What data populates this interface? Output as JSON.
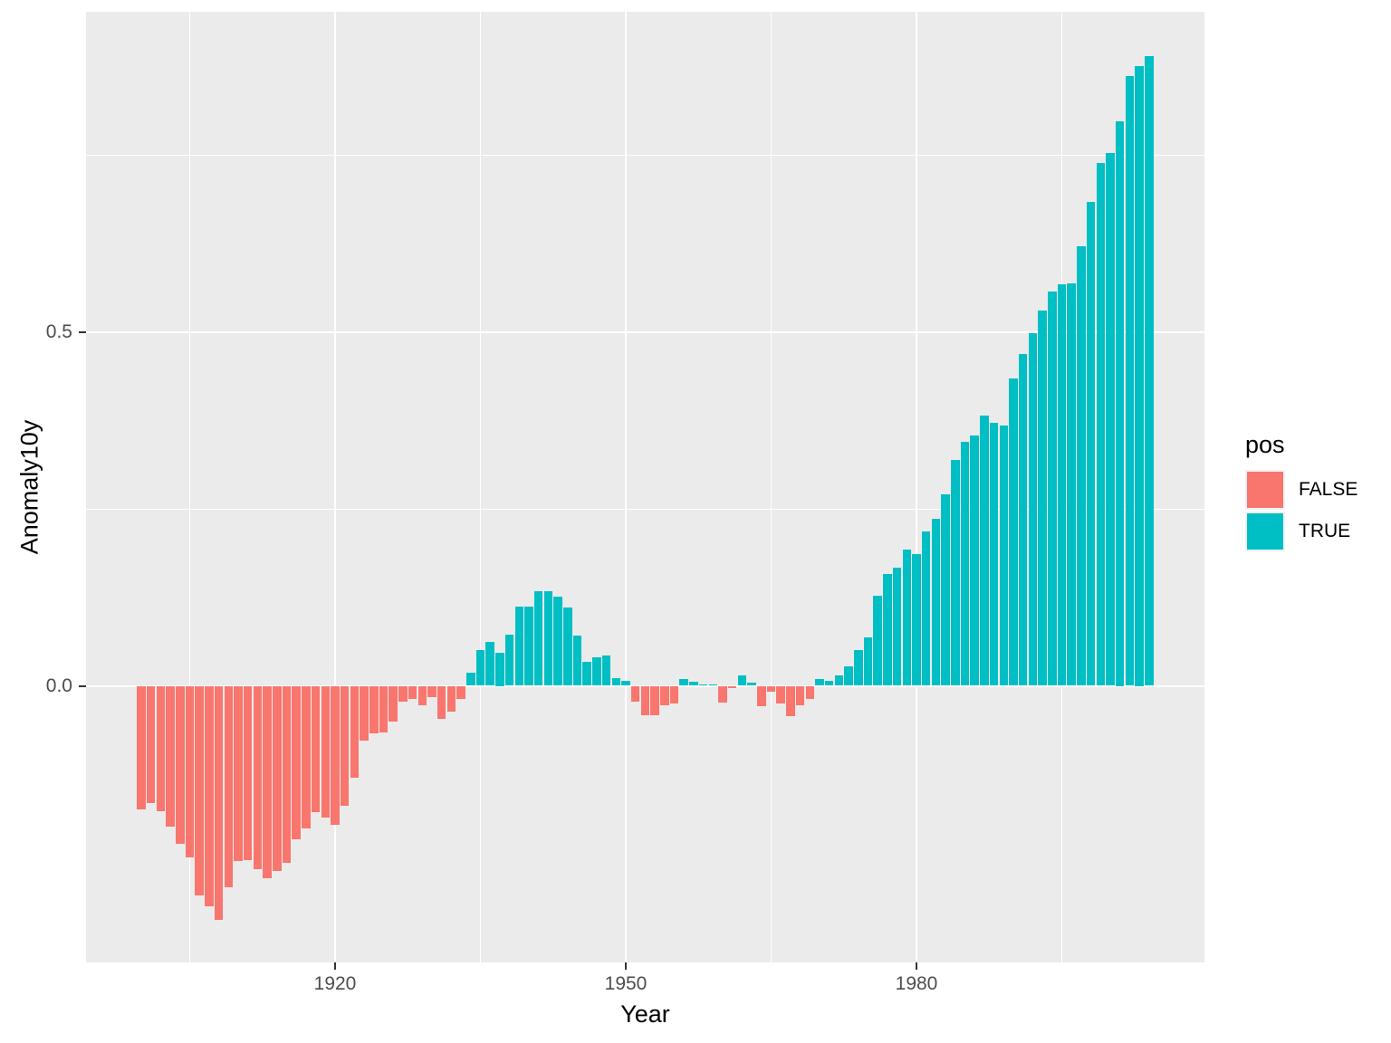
{
  "figure": {
    "x_axis": {
      "title": "Year",
      "tick_labels": [
        "1920",
        "1950",
        "1980"
      ]
    },
    "y_axis": {
      "title": "Anomaly10y",
      "tick_labels": [
        "0.0",
        "0.5"
      ]
    },
    "legend": {
      "title": "pos",
      "items": [
        {
          "label": "FALSE",
          "color": "#F8766D"
        },
        {
          "label": "TRUE",
          "color": "#00BFC4"
        }
      ]
    }
  },
  "chart_data": {
    "type": "bar",
    "title": "",
    "xlabel": "Year",
    "ylabel": "Anomaly10y",
    "legend_title": "pos",
    "legend_position": "right",
    "grid": true,
    "color_rule": "pos = (Anomaly10y >= 0); FALSE -> salmon, TRUE -> teal",
    "colors": {
      "FALSE": "#F8766D",
      "TRUE": "#00BFC4"
    },
    "panel_background": "#EBEBEB",
    "xlim": [
      1894.8,
      2009.2
    ],
    "ylim": [
      -0.392,
      0.952
    ],
    "x_major_breaks": [
      1920,
      1950,
      1980
    ],
    "x_minor_breaks": [
      1905,
      1935,
      1965,
      1995
    ],
    "y_major_breaks": [
      0.0,
      0.5
    ],
    "y_minor_breaks": [
      0.25,
      0.75
    ],
    "bar_width_fraction": 0.9,
    "years": [
      1900,
      1901,
      1902,
      1903,
      1904,
      1905,
      1906,
      1907,
      1908,
      1909,
      1910,
      1911,
      1912,
      1913,
      1914,
      1915,
      1916,
      1917,
      1918,
      1919,
      1920,
      1921,
      1922,
      1923,
      1924,
      1925,
      1926,
      1927,
      1928,
      1929,
      1930,
      1931,
      1932,
      1933,
      1934,
      1935,
      1936,
      1937,
      1938,
      1939,
      1940,
      1941,
      1942,
      1943,
      1944,
      1945,
      1946,
      1947,
      1948,
      1949,
      1950,
      1951,
      1952,
      1953,
      1954,
      1955,
      1956,
      1957,
      1958,
      1959,
      1960,
      1961,
      1962,
      1963,
      1964,
      1965,
      1966,
      1967,
      1968,
      1969,
      1970,
      1971,
      1972,
      1973,
      1974,
      1975,
      1976,
      1977,
      1978,
      1979,
      1980,
      1981,
      1982,
      1983,
      1984,
      1985,
      1986,
      1987,
      1988,
      1989,
      1990,
      1991,
      1992,
      1993,
      1994,
      1995,
      1996,
      1997,
      1998,
      1999,
      2000,
      2001,
      2002,
      2003,
      2004
    ],
    "values": [
      -0.174,
      -0.166,
      -0.177,
      -0.199,
      -0.223,
      -0.242,
      -0.296,
      -0.312,
      -0.33,
      -0.285,
      -0.248,
      -0.246,
      -0.259,
      -0.272,
      -0.261,
      -0.25,
      -0.217,
      -0.201,
      -0.178,
      -0.186,
      -0.196,
      -0.169,
      -0.13,
      -0.077,
      -0.067,
      -0.066,
      -0.051,
      -0.022,
      -0.019,
      -0.027,
      -0.016,
      -0.047,
      -0.037,
      -0.018,
      0.019,
      0.051,
      0.062,
      0.047,
      0.072,
      0.112,
      0.112,
      0.134,
      0.134,
      0.126,
      0.111,
      0.071,
      0.034,
      0.04,
      0.043,
      0.011,
      0.007,
      -0.022,
      -0.042,
      -0.042,
      -0.028,
      -0.025,
      0.01,
      0.006,
      0.002,
      0.002,
      -0.024,
      -0.003,
      0.015,
      0.004,
      -0.029,
      -0.008,
      -0.025,
      -0.043,
      -0.027,
      -0.019,
      0.01,
      0.007,
      0.015,
      0.027,
      0.05,
      0.068,
      0.127,
      0.158,
      0.167,
      0.193,
      0.186,
      0.218,
      0.236,
      0.27,
      0.319,
      0.345,
      0.354,
      0.382,
      0.371,
      0.368,
      0.434,
      0.469,
      0.498,
      0.53,
      0.557,
      0.567,
      0.568,
      0.621,
      0.684,
      0.739,
      0.753,
      0.797,
      0.861,
      0.875,
      0.89
    ]
  }
}
